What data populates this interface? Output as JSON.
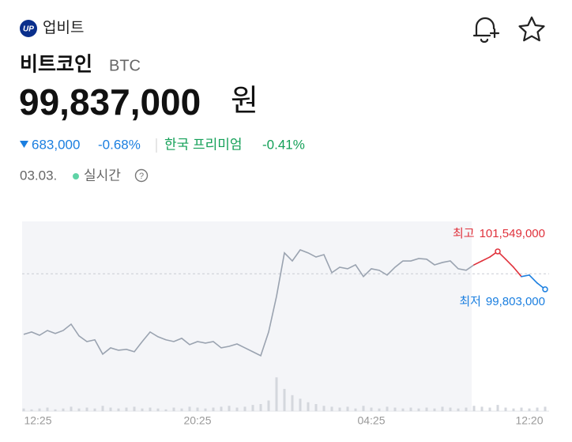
{
  "header": {
    "brand": "업비트",
    "logo": "UP"
  },
  "coin": {
    "name": "비트코인",
    "symbol": "BTC",
    "price": "99,837,000",
    "unit": "원"
  },
  "change": {
    "amount": "683,000",
    "percent": "-0.68%",
    "premium_label": "한국 프리미엄",
    "premium": "-0.41%"
  },
  "status": {
    "date": "03.03.",
    "live": "실시간"
  },
  "chart_data": {
    "type": "line",
    "values": [
      97730000,
      97840000,
      97690000,
      97910000,
      97770000,
      97910000,
      98200000,
      97660000,
      97400000,
      97480000,
      96820000,
      97110000,
      97000000,
      97040000,
      96930000,
      97400000,
      97840000,
      97620000,
      97480000,
      97400000,
      97550000,
      97260000,
      97400000,
      97330000,
      97400000,
      97110000,
      97180000,
      97290000,
      97110000,
      96930000,
      96750000,
      97840000,
      99480000,
      101480000,
      101110000,
      101620000,
      101480000,
      101290000,
      101400000,
      100570000,
      100820000,
      100750000,
      100930000,
      100390000,
      100750000,
      100680000,
      100460000,
      100820000,
      101110000,
      101110000,
      101220000,
      101190000,
      100930000,
      101040000,
      101110000,
      100750000,
      100680000,
      100930000,
      101110000,
      101290000,
      101549000,
      101190000,
      100820000,
      100390000,
      100460000,
      100090000,
      99803000
    ],
    "volume": [
      3,
      2,
      3,
      4,
      2,
      3,
      5,
      3,
      4,
      3,
      6,
      4,
      3,
      4,
      5,
      3,
      4,
      3,
      2,
      4,
      3,
      5,
      4,
      3,
      4,
      5,
      6,
      4,
      5,
      7,
      8,
      12,
      38,
      25,
      18,
      14,
      10,
      8,
      6,
      5,
      4,
      5,
      3,
      6,
      4,
      3,
      5,
      4,
      3,
      4,
      3,
      4,
      3,
      5,
      4,
      3,
      4,
      6,
      5,
      4,
      7,
      4,
      3,
      4,
      3,
      4,
      5
    ],
    "volume_lim": [
      0,
      40
    ],
    "ylim": [
      96380000,
      102930000
    ],
    "reference_line": 100520000,
    "high": {
      "text": "최고",
      "value": 101549000,
      "label": "101,549,000"
    },
    "low": {
      "text": "최저",
      "value": 99803000,
      "label": "99,803,000"
    },
    "time_labels": [
      "12:25",
      "20:25",
      "04:25",
      "12:20"
    ],
    "colors": {
      "past": "#9aa3b0",
      "up": "#e0313b",
      "down": "#1b7fe0"
    }
  }
}
